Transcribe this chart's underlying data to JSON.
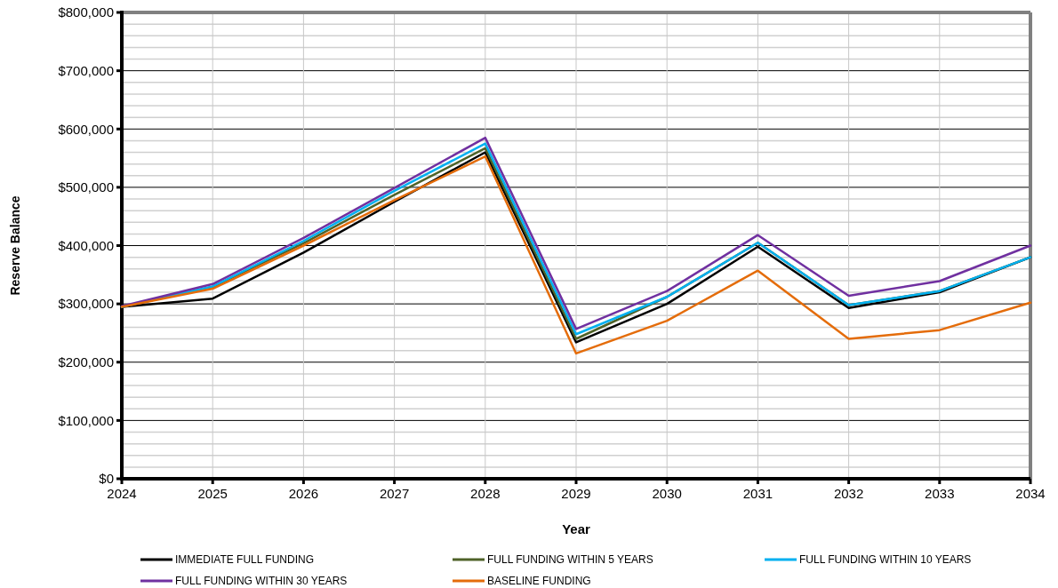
{
  "chart_data": {
    "type": "line",
    "xlabel": "Year",
    "ylabel": "Reserve Balance",
    "x": [
      2024,
      2025,
      2026,
      2027,
      2028,
      2029,
      2030,
      2031,
      2032,
      2033,
      2034
    ],
    "xlim": [
      2024,
      2034
    ],
    "xticks": [
      2024,
      2025,
      2026,
      2027,
      2028,
      2029,
      2030,
      2031,
      2032,
      2033,
      2034
    ],
    "ylim": [
      0,
      800000
    ],
    "yticks": [
      {
        "value": 0,
        "label": "$0"
      },
      {
        "value": 20000,
        "label": null
      },
      {
        "value": 40000,
        "label": null
      },
      {
        "value": 60000,
        "label": null
      },
      {
        "value": 80000,
        "label": null
      },
      {
        "value": 100000,
        "label": "$100,000"
      },
      {
        "value": 120000,
        "label": null
      },
      {
        "value": 140000,
        "label": null
      },
      {
        "value": 160000,
        "label": null
      },
      {
        "value": 180000,
        "label": null
      },
      {
        "value": 200000,
        "label": "$200,000"
      },
      {
        "value": 220000,
        "label": null
      },
      {
        "value": 240000,
        "label": null
      },
      {
        "value": 260000,
        "label": null
      },
      {
        "value": 280000,
        "label": null
      },
      {
        "value": 300000,
        "label": "$300,000"
      },
      {
        "value": 320000,
        "label": null
      },
      {
        "value": 340000,
        "label": null
      },
      {
        "value": 360000,
        "label": null
      },
      {
        "value": 380000,
        "label": null
      },
      {
        "value": 400000,
        "label": "$400,000"
      },
      {
        "value": 420000,
        "label": null
      },
      {
        "value": 440000,
        "label": null
      },
      {
        "value": 460000,
        "label": null
      },
      {
        "value": 480000,
        "label": null
      },
      {
        "value": 500000,
        "label": "$500,000"
      },
      {
        "value": 520000,
        "label": null
      },
      {
        "value": 540000,
        "label": null
      },
      {
        "value": 560000,
        "label": null
      },
      {
        "value": 580000,
        "label": null
      },
      {
        "value": 600000,
        "label": "$600,000"
      },
      {
        "value": 620000,
        "label": null
      },
      {
        "value": 640000,
        "label": null
      },
      {
        "value": 660000,
        "label": null
      },
      {
        "value": 680000,
        "label": null
      },
      {
        "value": 700000,
        "label": "$700,000"
      },
      {
        "value": 720000,
        "label": null
      },
      {
        "value": 740000,
        "label": null
      },
      {
        "value": 760000,
        "label": null
      },
      {
        "value": 780000,
        "label": null
      },
      {
        "value": 800000,
        "label": "$800,000"
      }
    ],
    "grid": true,
    "legend": "bottom",
    "marker": "none",
    "line_style": "solid",
    "series": [
      {
        "name": "IMMEDIATE FULL FUNDING",
        "color": "#000000",
        "values": [
          295000,
          309000,
          388000,
          475000,
          560000,
          234000,
          300000,
          398000,
          293000,
          320000,
          380000
        ]
      },
      {
        "name": "FULL FUNDING WITHIN 5 YEARS",
        "color": "#4f6228",
        "values": [
          295000,
          329000,
          404000,
          487000,
          567000,
          240000,
          312000,
          405000,
          298000,
          322000,
          380000
        ]
      },
      {
        "name": "FULL FUNDING WITHIN 10 YEARS",
        "color": "#00b0f0",
        "values": [
          295000,
          330000,
          408000,
          494000,
          575000,
          248000,
          312000,
          405000,
          298000,
          322000,
          380000
        ]
      },
      {
        "name": "FULL FUNDING WITHIN 30 YEARS",
        "color": "#7030a0",
        "values": [
          296000,
          334000,
          413000,
          499000,
          585000,
          257000,
          322000,
          418000,
          314000,
          339000,
          400000
        ]
      },
      {
        "name": "BASELINE FUNDING",
        "color": "#e46c0a",
        "values": [
          295000,
          326000,
          400000,
          478000,
          553000,
          215000,
          271000,
          357000,
          240000,
          255000,
          302000
        ]
      }
    ]
  }
}
